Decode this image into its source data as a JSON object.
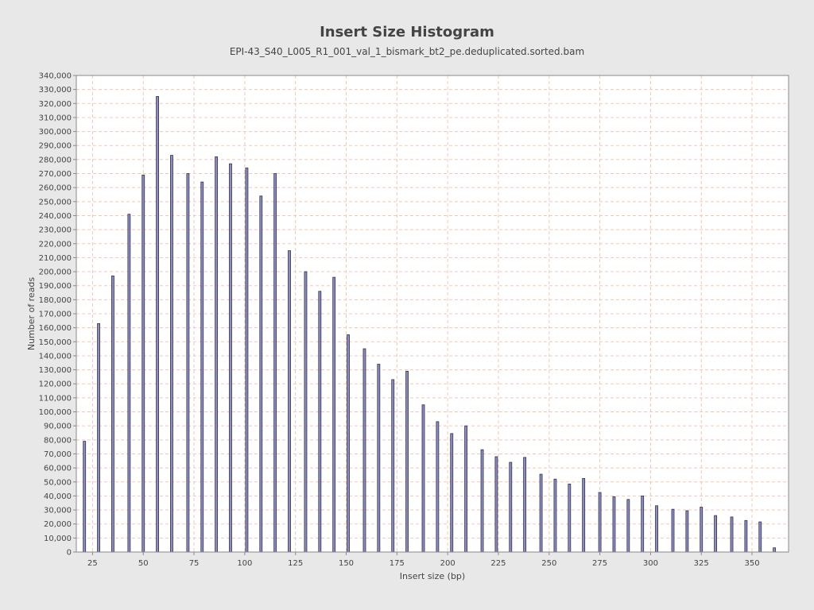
{
  "chart_data": {
    "type": "bar",
    "title": "Insert Size Histogram",
    "subtitle": "EPI-43_S40_L005_R1_001_val_1_bismark_bt2_pe.deduplicated.sorted.bam",
    "xlabel": "Insert size (bp)",
    "ylabel": "Number of reads",
    "xlim": [
      17,
      368
    ],
    "ylim": [
      0,
      340000
    ],
    "x_ticks": [
      25,
      50,
      75,
      100,
      125,
      150,
      175,
      200,
      225,
      250,
      275,
      300,
      325,
      350
    ],
    "y_ticks": [
      0,
      10000,
      20000,
      30000,
      40000,
      50000,
      60000,
      70000,
      80000,
      90000,
      100000,
      110000,
      120000,
      130000,
      140000,
      150000,
      160000,
      170000,
      180000,
      190000,
      200000,
      210000,
      220000,
      230000,
      240000,
      250000,
      260000,
      270000,
      280000,
      290000,
      300000,
      310000,
      320000,
      330000,
      340000
    ],
    "grid": true,
    "x": [
      21,
      28,
      35,
      43,
      50,
      57,
      64,
      72,
      79,
      86,
      93,
      101,
      108,
      115,
      122,
      130,
      137,
      144,
      151,
      159,
      166,
      173,
      180,
      188,
      195,
      202,
      209,
      217,
      224,
      231,
      238,
      246,
      253,
      260,
      267,
      275,
      282,
      289,
      296,
      303,
      311,
      318,
      325,
      332,
      340,
      347,
      354,
      361
    ],
    "values": [
      79000,
      163000,
      197000,
      241000,
      269000,
      325000,
      283000,
      270000,
      264000,
      282000,
      277000,
      274000,
      254000,
      270000,
      215000,
      200000,
      186000,
      196000,
      155000,
      145000,
      134000,
      123000,
      129000,
      105000,
      93000,
      84500,
      90000,
      73000,
      68000,
      64000,
      67500,
      55500,
      52000,
      48500,
      52500,
      42500,
      39500,
      37500,
      40000,
      33000,
      30500,
      29500,
      32000,
      26000,
      25000,
      22500,
      21500,
      3000
    ],
    "colors": {
      "bar_fill": "#8c8ccc",
      "bar_stroke": "#333333",
      "grid": "#f0c8b8",
      "plot_bg": "#ffffff",
      "page_bg": "#e8e8e8"
    }
  }
}
